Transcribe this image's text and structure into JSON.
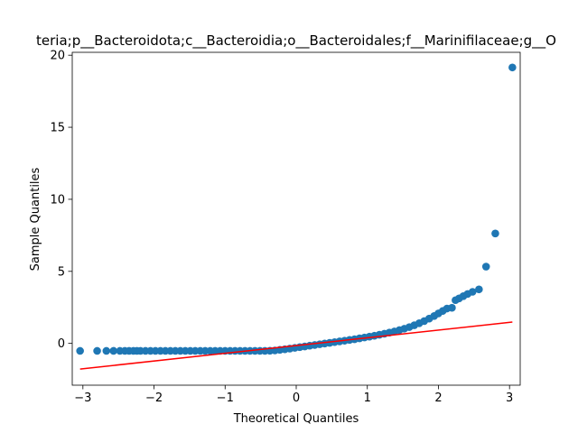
{
  "chart_data": {
    "type": "scatter",
    "title": "teria;p__Bacteroidota;c__Bacteroidia;o__Bacteroidales;f__Marinifilaceae;g__O",
    "xlabel": "Theoretical Quantiles",
    "ylabel": "Sample Quantiles",
    "xlim": [
      -3.15,
      3.15
    ],
    "ylim": [
      -2.9,
      20.2
    ],
    "xticks": [
      -3,
      -2,
      -1,
      0,
      1,
      2,
      3
    ],
    "yticks": [
      0,
      5,
      10,
      15,
      20
    ],
    "grid": false,
    "point_color": "#1f77b4",
    "line_color": "#ff0000",
    "reference_line": {
      "x": [
        -3.04,
        3.04
      ],
      "y": [
        -1.78,
        1.48
      ]
    },
    "series": [
      {
        "points": [
          [
            -3.04,
            -0.52
          ],
          [
            -2.8,
            -0.52
          ],
          [
            -2.67,
            -0.52
          ],
          [
            -2.57,
            -0.52
          ],
          [
            -2.48,
            -0.52
          ],
          [
            -2.41,
            -0.52
          ],
          [
            -2.35,
            -0.52
          ],
          [
            -2.29,
            -0.52
          ],
          [
            -2.24,
            -0.52
          ],
          [
            -2.19,
            -0.52
          ],
          [
            -2.12,
            -0.52
          ],
          [
            -2.05,
            -0.52
          ],
          [
            -1.98,
            -0.52
          ],
          [
            -1.91,
            -0.52
          ],
          [
            -1.84,
            -0.52
          ],
          [
            -1.77,
            -0.52
          ],
          [
            -1.7,
            -0.52
          ],
          [
            -1.63,
            -0.52
          ],
          [
            -1.56,
            -0.52
          ],
          [
            -1.49,
            -0.52
          ],
          [
            -1.42,
            -0.52
          ],
          [
            -1.35,
            -0.52
          ],
          [
            -1.28,
            -0.52
          ],
          [
            -1.21,
            -0.52
          ],
          [
            -1.14,
            -0.52
          ],
          [
            -1.07,
            -0.52
          ],
          [
            -1.0,
            -0.52
          ],
          [
            -0.93,
            -0.52
          ],
          [
            -0.86,
            -0.52
          ],
          [
            -0.79,
            -0.52
          ],
          [
            -0.72,
            -0.52
          ],
          [
            -0.65,
            -0.52
          ],
          [
            -0.58,
            -0.52
          ],
          [
            -0.51,
            -0.52
          ],
          [
            -0.44,
            -0.52
          ],
          [
            -0.37,
            -0.51
          ],
          [
            -0.3,
            -0.49
          ],
          [
            -0.23,
            -0.45
          ],
          [
            -0.16,
            -0.41
          ],
          [
            -0.09,
            -0.36
          ],
          [
            -0.02,
            -0.31
          ],
          [
            0.05,
            -0.26
          ],
          [
            0.12,
            -0.21
          ],
          [
            0.19,
            -0.16
          ],
          [
            0.26,
            -0.11
          ],
          [
            0.33,
            -0.06
          ],
          [
            0.4,
            -0.01
          ],
          [
            0.47,
            0.04
          ],
          [
            0.54,
            0.09
          ],
          [
            0.61,
            0.14
          ],
          [
            0.68,
            0.19
          ],
          [
            0.75,
            0.24
          ],
          [
            0.82,
            0.29
          ],
          [
            0.89,
            0.35
          ],
          [
            0.96,
            0.41
          ],
          [
            1.03,
            0.47
          ],
          [
            1.1,
            0.53
          ],
          [
            1.17,
            0.6
          ],
          [
            1.24,
            0.67
          ],
          [
            1.31,
            0.75
          ],
          [
            1.38,
            0.83
          ],
          [
            1.45,
            0.92
          ],
          [
            1.52,
            1.02
          ],
          [
            1.59,
            1.13
          ],
          [
            1.66,
            1.26
          ],
          [
            1.73,
            1.4
          ],
          [
            1.8,
            1.55
          ],
          [
            1.87,
            1.72
          ],
          [
            1.94,
            1.9
          ],
          [
            2.0,
            2.08
          ],
          [
            2.06,
            2.25
          ],
          [
            2.12,
            2.42
          ],
          [
            2.19,
            2.47
          ],
          [
            2.24,
            3.0
          ],
          [
            2.29,
            3.12
          ],
          [
            2.35,
            3.28
          ],
          [
            2.41,
            3.43
          ],
          [
            2.48,
            3.58
          ],
          [
            2.57,
            3.75
          ],
          [
            2.67,
            5.33
          ],
          [
            2.8,
            7.63
          ],
          [
            3.04,
            19.15
          ]
        ]
      }
    ]
  }
}
